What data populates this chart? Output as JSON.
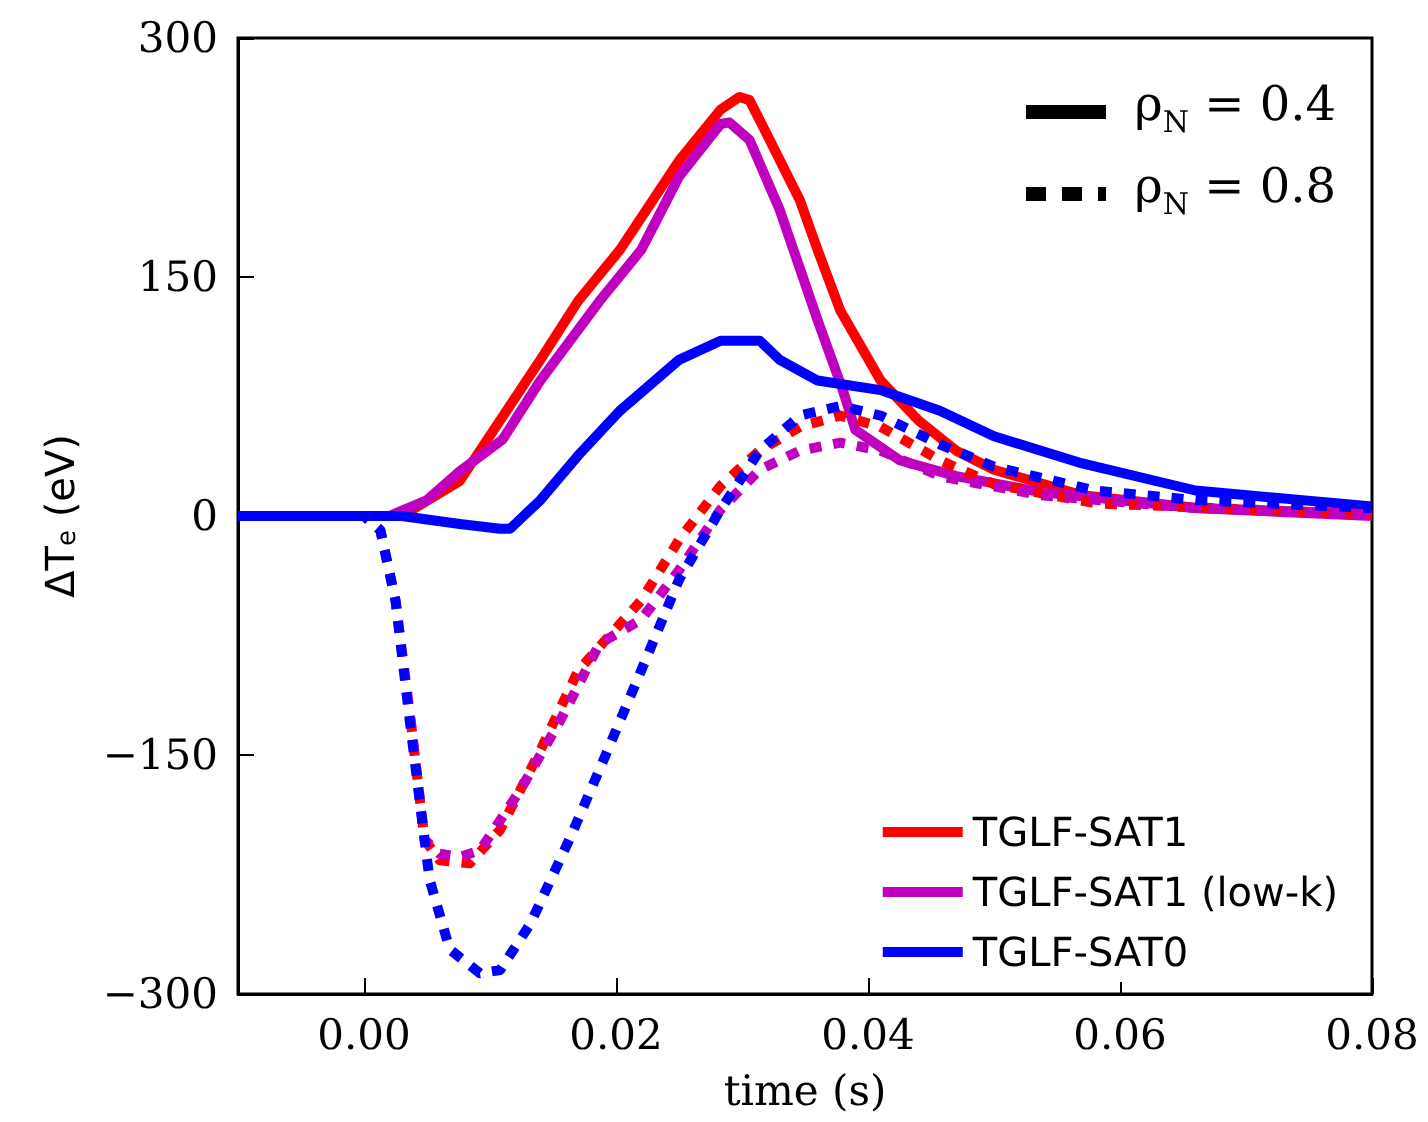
{
  "chart_data": {
    "type": "line",
    "xlabel": "time (s)",
    "ylabel": "ΔT$_{e}$ (eV)",
    "xlim": [
      -0.01,
      0.08
    ],
    "xticks": [
      {
        "value": 0,
        "label": "0.00"
      },
      0.02,
      0.04,
      0.06,
      0.08
    ],
    "ylim": [
      -300,
      300
    ],
    "yticks": [
      {
        "value": -300,
        "label": "−300"
      },
      {
        "value": -150,
        "label": "−150"
      },
      0,
      150,
      300
    ],
    "grid": false,
    "legend": "bottom right",
    "marker": "none",
    "annotations": [
      "ρ$_{N}$ = 0.4",
      "ρ$_{N}$ = 0.8"
    ],
    "series": [
      {
        "name": "TGLF-SAT1",
        "color": "#ff0000",
        "line_style": "solid",
        "x": [
          -0.01,
          0.0,
          0.003,
          0.0076,
          0.014,
          0.017,
          0.0203,
          0.025,
          0.0283,
          0.0298,
          0.0306,
          0.0322,
          0.0346,
          0.036,
          0.0378,
          0.041,
          0.044,
          0.047,
          0.05,
          0.057,
          0.066,
          0.08
        ],
        "values": [
          0,
          0,
          0,
          22,
          98,
          135,
          167,
          223,
          255,
          263,
          261,
          236,
          198,
          167,
          129,
          85,
          60,
          41,
          29,
          13,
          5,
          1
        ]
      },
      {
        "name": "TGLF-SAT1 (low-k)",
        "color": "#bf00bf",
        "line_style": "solid",
        "x": [
          -0.01,
          0.0,
          0.002,
          0.005,
          0.0076,
          0.011,
          0.014,
          0.0187,
          0.022,
          0.025,
          0.0283,
          0.029,
          0.0306,
          0.033,
          0.036,
          0.038,
          0.039,
          0.0425,
          0.047,
          0.0537,
          0.066,
          0.08
        ],
        "values": [
          0,
          0,
          0,
          10,
          28,
          48,
          85,
          135,
          167,
          213,
          246,
          247,
          236,
          192,
          123,
          79,
          54,
          35,
          25,
          15,
          5,
          0
        ]
      },
      {
        "name": "TGLF-SAT0",
        "color": "#0000ff",
        "line_style": "solid",
        "x": [
          -0.01,
          0.0,
          0.003,
          0.0076,
          0.0108,
          0.0116,
          0.014,
          0.017,
          0.0203,
          0.025,
          0.0283,
          0.0314,
          0.033,
          0.036,
          0.041,
          0.0457,
          0.05,
          0.057,
          0.066,
          0.08
        ],
        "values": [
          0,
          0,
          0,
          -5,
          -8,
          -8,
          10,
          38,
          66,
          98,
          110,
          110,
          98,
          85,
          79,
          66,
          50,
          33,
          16,
          6
        ]
      },
      {
        "color": "#ff0000",
        "line_style": "dashed",
        "x": [
          0.0037,
          0.0048,
          0.006,
          0.0084,
          0.0108,
          0.014,
          0.017,
          0.0195,
          0.022,
          0.025,
          0.0283,
          0.0314,
          0.0346,
          0.0378,
          0.041,
          0.0457,
          0.05,
          0.058,
          0.08
        ],
        "values": [
          -128,
          -203,
          -216,
          -218,
          -197,
          -147,
          -97,
          -75,
          -53,
          -15,
          19,
          41,
          56,
          63,
          56,
          35,
          20,
          8,
          1
        ]
      },
      {
        "color": "#bf00bf",
        "line_style": "dashed",
        "x": [
          -0.01,
          0.0,
          0.0013,
          0.0025,
          0.0037,
          0.0048,
          0.006,
          0.0076,
          0.0092,
          0.0124,
          0.0156,
          0.0187,
          0.022,
          0.025,
          0.0283,
          0.0314,
          0.0346,
          0.0378,
          0.041,
          0.0457,
          0.0537,
          0.066,
          0.08
        ],
        "values": [
          0,
          0,
          -9,
          -53,
          -128,
          -203,
          -212,
          -214,
          -210,
          -172,
          -128,
          -80,
          -65,
          -34,
          4,
          29,
          41,
          46,
          41,
          25,
          13,
          5,
          1
        ]
      },
      {
        "color": "#0000ff",
        "line_style": "dashed",
        "x": [
          -0.01,
          0.0,
          0.0013,
          0.0025,
          0.0037,
          0.0052,
          0.0068,
          0.0092,
          0.0108,
          0.0132,
          0.0163,
          0.0187,
          0.022,
          0.025,
          0.0283,
          0.0314,
          0.0346,
          0.0378,
          0.041,
          0.0457,
          0.05,
          0.058,
          0.066,
          0.08
        ],
        "values": [
          0,
          0,
          -9,
          -53,
          -133,
          -228,
          -272,
          -287,
          -285,
          -256,
          -203,
          -159,
          -97,
          -40,
          4,
          41,
          63,
          69,
          63,
          45,
          31,
          16,
          10,
          5
        ]
      }
    ]
  }
}
